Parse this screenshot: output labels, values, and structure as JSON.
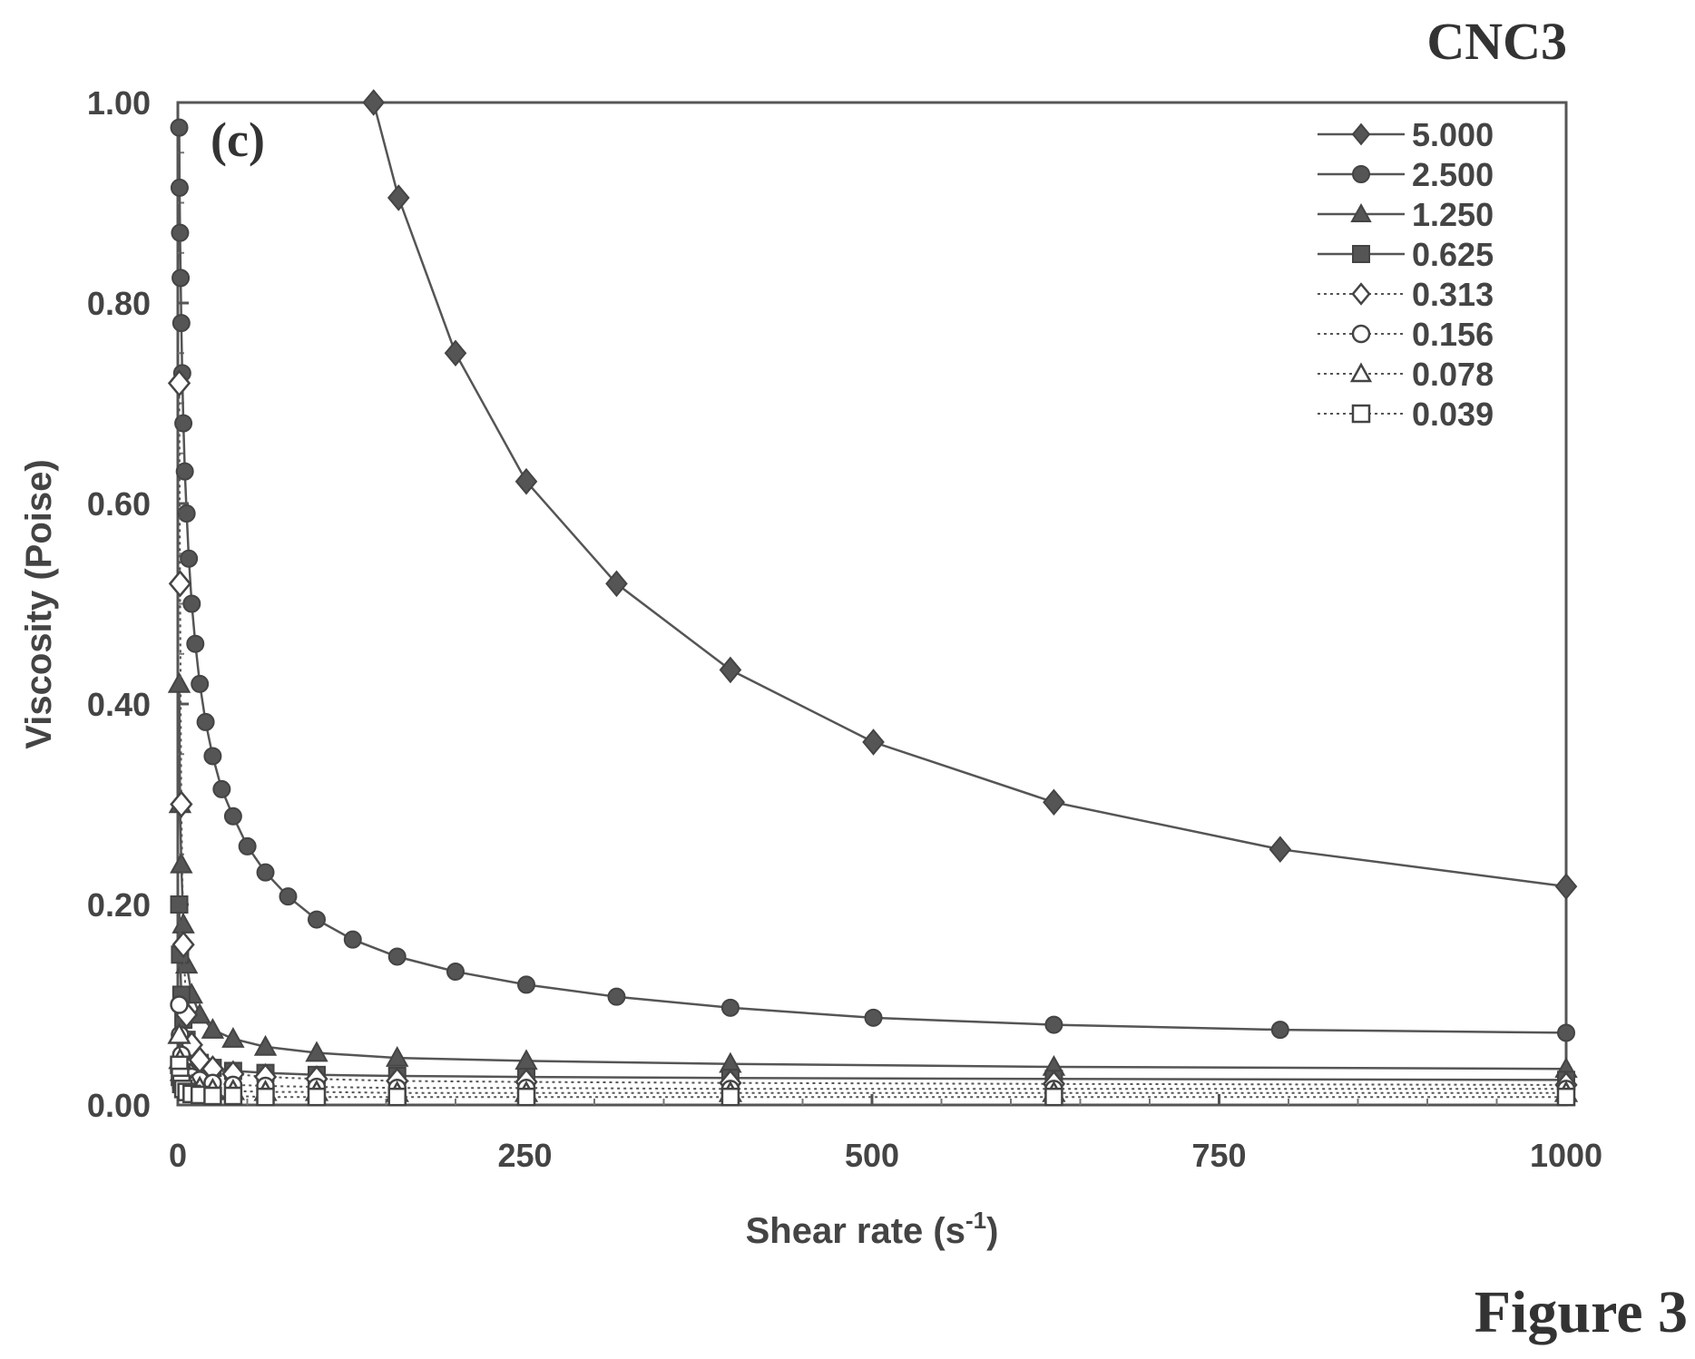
{
  "figure_label": "Figure 3",
  "chart_data": {
    "type": "line",
    "title": "CNC3",
    "panel_label": "(c)",
    "xlabel": "Shear rate (s",
    "xlabel_sup": "-1",
    "xlabel_close": ")",
    "ylabel": "Viscosity (Poise)",
    "xlim": [
      0,
      1000
    ],
    "ylim": [
      0,
      1.0
    ],
    "x_ticks": [
      0,
      250,
      500,
      750,
      1000
    ],
    "x_tick_labels": [
      "0",
      "250",
      "500",
      "750",
      "1000"
    ],
    "y_ticks": [
      0,
      0.2,
      0.4,
      0.6,
      0.8,
      1.0
    ],
    "y_tick_labels": [
      "0.00",
      "0.20",
      "0.40",
      "0.60",
      "0.80",
      "1.00"
    ],
    "grid": false,
    "legend_position": "top-right",
    "series": [
      {
        "name": "5.000",
        "marker": "diamond",
        "line": "solid",
        "x": [
          141,
          159,
          200,
          251,
          316,
          398,
          501,
          631,
          794,
          1000
        ],
        "y": [
          1.0,
          0.905,
          0.75,
          0.622,
          0.52,
          0.434,
          0.362,
          0.302,
          0.255,
          0.218
        ]
      },
      {
        "name": "2.500",
        "marker": "circle",
        "line": "solid",
        "x": [
          1,
          1.26,
          1.58,
          2,
          2.51,
          3.16,
          3.98,
          5.01,
          6.31,
          7.94,
          10,
          12.6,
          15.8,
          20,
          25.1,
          31.6,
          39.8,
          50.1,
          63.1,
          79.4,
          100,
          126,
          158,
          200,
          251,
          316,
          398,
          501,
          631,
          794,
          1000
        ],
        "y": [
          0.975,
          0.915,
          0.87,
          0.825,
          0.78,
          0.73,
          0.68,
          0.632,
          0.59,
          0.545,
          0.5,
          0.46,
          0.42,
          0.382,
          0.348,
          0.315,
          0.288,
          0.258,
          0.232,
          0.208,
          0.185,
          0.165,
          0.148,
          0.133,
          0.12,
          0.108,
          0.097,
          0.087,
          0.08,
          0.075,
          0.072
        ]
      },
      {
        "name": "1.250",
        "marker": "triangle",
        "line": "solid",
        "x": [
          1,
          1.58,
          2.51,
          3.98,
          6.31,
          10,
          15.8,
          25.1,
          39.8,
          63.1,
          100,
          158,
          251,
          398,
          631,
          1000
        ],
        "y": [
          0.42,
          0.3,
          0.24,
          0.18,
          0.14,
          0.11,
          0.09,
          0.075,
          0.066,
          0.058,
          0.052,
          0.047,
          0.044,
          0.041,
          0.038,
          0.036
        ]
      },
      {
        "name": "0.625",
        "marker": "square",
        "line": "solid",
        "x": [
          1,
          1.58,
          2.51,
          3.98,
          6.31,
          10,
          15.8,
          25.1,
          39.8,
          63.1,
          100,
          158,
          251,
          398,
          631,
          1000
        ],
        "y": [
          0.2,
          0.15,
          0.11,
          0.085,
          0.065,
          0.05,
          0.042,
          0.037,
          0.034,
          0.032,
          0.03,
          0.029,
          0.028,
          0.027,
          0.026,
          0.025
        ]
      },
      {
        "name": "0.313",
        "marker": "diamond-open",
        "line": "dotted",
        "x": [
          1,
          1.58,
          2.51,
          3.98,
          6.31,
          10,
          15.8,
          25.1,
          39.8,
          63.1,
          100,
          158,
          251,
          398,
          631,
          1000
        ],
        "y": [
          0.72,
          0.52,
          0.3,
          0.16,
          0.09,
          0.06,
          0.045,
          0.036,
          0.031,
          0.028,
          0.026,
          0.024,
          0.023,
          0.022,
          0.021,
          0.02
        ]
      },
      {
        "name": "0.156",
        "marker": "circle-open",
        "line": "dotted",
        "x": [
          1,
          1.58,
          2.51,
          3.98,
          6.31,
          10,
          15.8,
          25.1,
          39.8,
          63.1,
          100,
          158,
          251,
          398,
          631,
          1000
        ],
        "y": [
          0.1,
          0.07,
          0.05,
          0.04,
          0.033,
          0.028,
          0.025,
          0.022,
          0.02,
          0.019,
          0.018,
          0.017,
          0.017,
          0.016,
          0.016,
          0.016
        ]
      },
      {
        "name": "0.078",
        "marker": "triangle-open",
        "line": "dotted",
        "x": [
          1,
          1.58,
          2.51,
          3.98,
          6.31,
          10,
          15.8,
          25.1,
          39.8,
          63.1,
          100,
          158,
          251,
          398,
          631,
          1000
        ],
        "y": [
          0.07,
          0.045,
          0.033,
          0.026,
          0.022,
          0.019,
          0.017,
          0.015,
          0.014,
          0.013,
          0.013,
          0.012,
          0.012,
          0.012,
          0.012,
          0.012
        ]
      },
      {
        "name": "0.039",
        "marker": "square-open",
        "line": "dotted",
        "x": [
          1,
          1.58,
          2.51,
          3.98,
          6.31,
          10,
          15.8,
          25.1,
          39.8,
          63.1,
          100,
          158,
          251,
          398,
          631,
          1000
        ],
        "y": [
          0.04,
          0.028,
          0.021,
          0.016,
          0.013,
          0.011,
          0.01,
          0.009,
          0.009,
          0.008,
          0.008,
          0.008,
          0.008,
          0.008,
          0.008,
          0.008
        ]
      }
    ]
  }
}
